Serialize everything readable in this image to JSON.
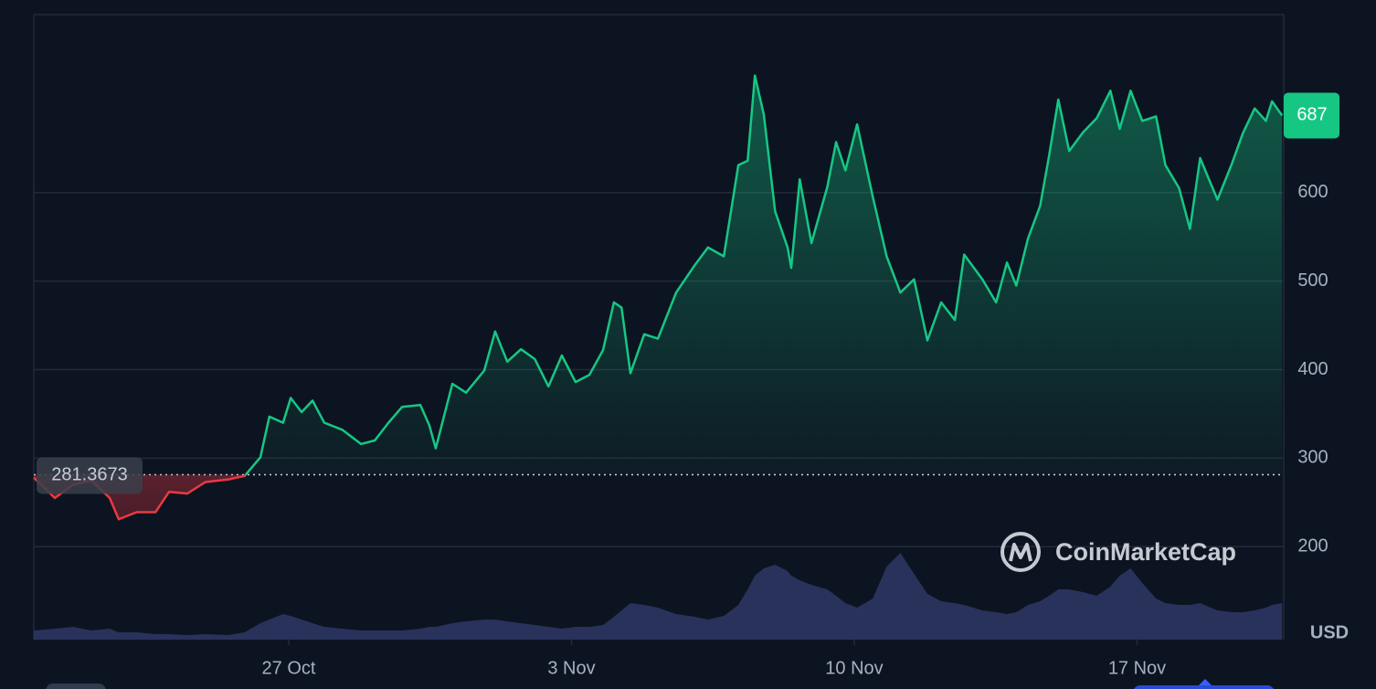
{
  "chart_data": {
    "type": "line",
    "x": [
      -6.31,
      -5.79,
      -5.34,
      -4.89,
      -4.43,
      -4.21,
      -3.76,
      -3.3,
      -2.96,
      -2.51,
      -2.06,
      -1.49,
      -1.09,
      -0.7,
      -0.48,
      -0.14,
      0.05,
      0.32,
      0.59,
      0.88,
      1.33,
      1.79,
      2.13,
      2.47,
      2.81,
      3.26,
      3.48,
      3.64,
      4.05,
      4.39,
      4.84,
      5.11,
      5.41,
      5.75,
      6.09,
      6.43,
      6.76,
      7.1,
      7.44,
      7.78,
      8.05,
      8.24,
      8.46,
      8.8,
      9.14,
      9.59,
      10.05,
      10.38,
      10.77,
      11.13,
      11.36,
      11.54,
      11.76,
      12.04,
      12.35,
      12.44,
      12.65,
      12.94,
      13.33,
      13.55,
      13.78,
      14.07,
      14.46,
      14.8,
      15.14,
      15.48,
      15.81,
      16.15,
      16.49,
      16.72,
      17.17,
      17.51,
      17.78,
      18.01,
      18.3,
      18.6,
      18.82,
      19.05,
      19.32,
      19.66,
      20.0,
      20.34,
      20.57,
      20.84,
      21.13,
      21.47,
      21.7,
      22.04,
      22.31,
      22.56,
      22.99,
      23.35,
      23.62,
      23.91,
      24.19,
      24.34,
      24.59
    ],
    "series": [
      {
        "color": "#16c784",
        "color_below": "#ea3943",
        "values": [
          278,
          255,
          270,
          275,
          255,
          231,
          239,
          239,
          262,
          260,
          273,
          276,
          280,
          301,
          347,
          340,
          368,
          352,
          365,
          340,
          332,
          316,
          320,
          340,
          358,
          360,
          337,
          311,
          384,
          374,
          399,
          443,
          409,
          423,
          412,
          381,
          416,
          386,
          394,
          422,
          476,
          470,
          396,
          440,
          435,
          487,
          518,
          538,
          528,
          631,
          636,
          732,
          688,
          579,
          538,
          515,
          615,
          543,
          606,
          657,
          625,
          677,
          595,
          528,
          487,
          502,
          433,
          476,
          456,
          530,
          502,
          476,
          521,
          495,
          548,
          585,
          641,
          705,
          647,
          668,
          684,
          715,
          672,
          715,
          681,
          686,
          631,
          605,
          559,
          639,
          592,
          633,
          667,
          695,
          681,
          703,
          687
        ]
      }
    ],
    "baseline": 281.3673,
    "volume": {
      "color": "#2c3562",
      "ylim": [
        0,
        100
      ],
      "values": [
        10,
        12,
        14,
        10,
        12,
        8,
        8,
        6,
        6,
        5,
        6,
        5,
        8,
        18,
        22,
        28,
        26,
        22,
        18,
        14,
        12,
        10,
        10,
        10,
        10,
        12,
        14,
        14,
        18,
        20,
        22,
        22,
        20,
        18,
        16,
        14,
        12,
        14,
        14,
        16,
        25,
        32,
        40,
        38,
        35,
        28,
        25,
        22,
        26,
        38,
        55,
        70,
        78,
        82,
        75,
        70,
        65,
        60,
        55,
        48,
        40,
        35,
        45,
        80,
        95,
        72,
        50,
        42,
        40,
        38,
        32,
        30,
        28,
        30,
        38,
        42,
        48,
        55,
        55,
        52,
        48,
        58,
        70,
        78,
        62,
        45,
        40,
        38,
        38,
        40,
        32,
        30,
        30,
        32,
        35,
        38,
        40
      ]
    },
    "xlim": [
      -6.31,
      24.63
    ],
    "ylim": [
      95,
      801
    ],
    "xticks": [
      {
        "value": 0,
        "label": "27 Oct"
      },
      {
        "value": 7,
        "label": "3 Nov"
      },
      {
        "value": 14,
        "label": "10 Nov"
      },
      {
        "value": 21,
        "label": "17 Nov"
      }
    ],
    "yticks": [
      200,
      300,
      400,
      500,
      600
    ],
    "currency": "USD",
    "watermark": "CoinMarketCap",
    "grid": true
  }
}
